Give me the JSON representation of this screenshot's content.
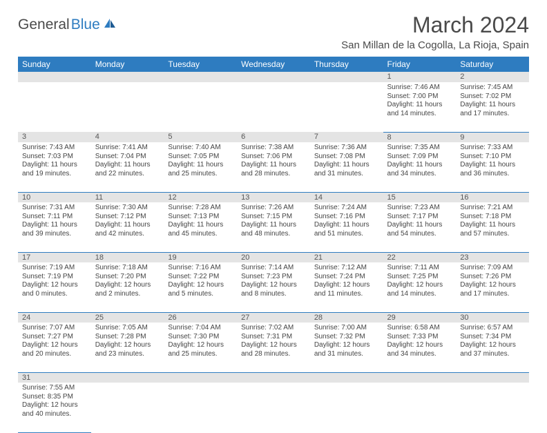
{
  "brand": {
    "part1": "General",
    "part2": "Blue"
  },
  "title": "March 2024",
  "location": "San Millan de la Cogolla, La Rioja, Spain",
  "colors": {
    "header_bg": "#2e7cc0",
    "header_text": "#ffffff",
    "daynum_bg": "#e4e4e4",
    "row_divider": "#2e7cc0",
    "body_text": "#444444",
    "title_text": "#4a4a4a"
  },
  "weekday_labels": [
    "Sunday",
    "Monday",
    "Tuesday",
    "Wednesday",
    "Thursday",
    "Friday",
    "Saturday"
  ],
  "weeks": [
    [
      null,
      null,
      null,
      null,
      null,
      {
        "n": "1",
        "sr": "Sunrise: 7:46 AM",
        "ss": "Sunset: 7:00 PM",
        "d1": "Daylight: 11 hours",
        "d2": "and 14 minutes."
      },
      {
        "n": "2",
        "sr": "Sunrise: 7:45 AM",
        "ss": "Sunset: 7:02 PM",
        "d1": "Daylight: 11 hours",
        "d2": "and 17 minutes."
      }
    ],
    [
      {
        "n": "3",
        "sr": "Sunrise: 7:43 AM",
        "ss": "Sunset: 7:03 PM",
        "d1": "Daylight: 11 hours",
        "d2": "and 19 minutes."
      },
      {
        "n": "4",
        "sr": "Sunrise: 7:41 AM",
        "ss": "Sunset: 7:04 PM",
        "d1": "Daylight: 11 hours",
        "d2": "and 22 minutes."
      },
      {
        "n": "5",
        "sr": "Sunrise: 7:40 AM",
        "ss": "Sunset: 7:05 PM",
        "d1": "Daylight: 11 hours",
        "d2": "and 25 minutes."
      },
      {
        "n": "6",
        "sr": "Sunrise: 7:38 AM",
        "ss": "Sunset: 7:06 PM",
        "d1": "Daylight: 11 hours",
        "d2": "and 28 minutes."
      },
      {
        "n": "7",
        "sr": "Sunrise: 7:36 AM",
        "ss": "Sunset: 7:08 PM",
        "d1": "Daylight: 11 hours",
        "d2": "and 31 minutes."
      },
      {
        "n": "8",
        "sr": "Sunrise: 7:35 AM",
        "ss": "Sunset: 7:09 PM",
        "d1": "Daylight: 11 hours",
        "d2": "and 34 minutes."
      },
      {
        "n": "9",
        "sr": "Sunrise: 7:33 AM",
        "ss": "Sunset: 7:10 PM",
        "d1": "Daylight: 11 hours",
        "d2": "and 36 minutes."
      }
    ],
    [
      {
        "n": "10",
        "sr": "Sunrise: 7:31 AM",
        "ss": "Sunset: 7:11 PM",
        "d1": "Daylight: 11 hours",
        "d2": "and 39 minutes."
      },
      {
        "n": "11",
        "sr": "Sunrise: 7:30 AM",
        "ss": "Sunset: 7:12 PM",
        "d1": "Daylight: 11 hours",
        "d2": "and 42 minutes."
      },
      {
        "n": "12",
        "sr": "Sunrise: 7:28 AM",
        "ss": "Sunset: 7:13 PM",
        "d1": "Daylight: 11 hours",
        "d2": "and 45 minutes."
      },
      {
        "n": "13",
        "sr": "Sunrise: 7:26 AM",
        "ss": "Sunset: 7:15 PM",
        "d1": "Daylight: 11 hours",
        "d2": "and 48 minutes."
      },
      {
        "n": "14",
        "sr": "Sunrise: 7:24 AM",
        "ss": "Sunset: 7:16 PM",
        "d1": "Daylight: 11 hours",
        "d2": "and 51 minutes."
      },
      {
        "n": "15",
        "sr": "Sunrise: 7:23 AM",
        "ss": "Sunset: 7:17 PM",
        "d1": "Daylight: 11 hours",
        "d2": "and 54 minutes."
      },
      {
        "n": "16",
        "sr": "Sunrise: 7:21 AM",
        "ss": "Sunset: 7:18 PM",
        "d1": "Daylight: 11 hours",
        "d2": "and 57 minutes."
      }
    ],
    [
      {
        "n": "17",
        "sr": "Sunrise: 7:19 AM",
        "ss": "Sunset: 7:19 PM",
        "d1": "Daylight: 12 hours",
        "d2": "and 0 minutes."
      },
      {
        "n": "18",
        "sr": "Sunrise: 7:18 AM",
        "ss": "Sunset: 7:20 PM",
        "d1": "Daylight: 12 hours",
        "d2": "and 2 minutes."
      },
      {
        "n": "19",
        "sr": "Sunrise: 7:16 AM",
        "ss": "Sunset: 7:22 PM",
        "d1": "Daylight: 12 hours",
        "d2": "and 5 minutes."
      },
      {
        "n": "20",
        "sr": "Sunrise: 7:14 AM",
        "ss": "Sunset: 7:23 PM",
        "d1": "Daylight: 12 hours",
        "d2": "and 8 minutes."
      },
      {
        "n": "21",
        "sr": "Sunrise: 7:12 AM",
        "ss": "Sunset: 7:24 PM",
        "d1": "Daylight: 12 hours",
        "d2": "and 11 minutes."
      },
      {
        "n": "22",
        "sr": "Sunrise: 7:11 AM",
        "ss": "Sunset: 7:25 PM",
        "d1": "Daylight: 12 hours",
        "d2": "and 14 minutes."
      },
      {
        "n": "23",
        "sr": "Sunrise: 7:09 AM",
        "ss": "Sunset: 7:26 PM",
        "d1": "Daylight: 12 hours",
        "d2": "and 17 minutes."
      }
    ],
    [
      {
        "n": "24",
        "sr": "Sunrise: 7:07 AM",
        "ss": "Sunset: 7:27 PM",
        "d1": "Daylight: 12 hours",
        "d2": "and 20 minutes."
      },
      {
        "n": "25",
        "sr": "Sunrise: 7:05 AM",
        "ss": "Sunset: 7:28 PM",
        "d1": "Daylight: 12 hours",
        "d2": "and 23 minutes."
      },
      {
        "n": "26",
        "sr": "Sunrise: 7:04 AM",
        "ss": "Sunset: 7:30 PM",
        "d1": "Daylight: 12 hours",
        "d2": "and 25 minutes."
      },
      {
        "n": "27",
        "sr": "Sunrise: 7:02 AM",
        "ss": "Sunset: 7:31 PM",
        "d1": "Daylight: 12 hours",
        "d2": "and 28 minutes."
      },
      {
        "n": "28",
        "sr": "Sunrise: 7:00 AM",
        "ss": "Sunset: 7:32 PM",
        "d1": "Daylight: 12 hours",
        "d2": "and 31 minutes."
      },
      {
        "n": "29",
        "sr": "Sunrise: 6:58 AM",
        "ss": "Sunset: 7:33 PM",
        "d1": "Daylight: 12 hours",
        "d2": "and 34 minutes."
      },
      {
        "n": "30",
        "sr": "Sunrise: 6:57 AM",
        "ss": "Sunset: 7:34 PM",
        "d1": "Daylight: 12 hours",
        "d2": "and 37 minutes."
      }
    ],
    [
      {
        "n": "31",
        "sr": "Sunrise: 7:55 AM",
        "ss": "Sunset: 8:35 PM",
        "d1": "Daylight: 12 hours",
        "d2": "and 40 minutes."
      },
      null,
      null,
      null,
      null,
      null,
      null
    ]
  ]
}
